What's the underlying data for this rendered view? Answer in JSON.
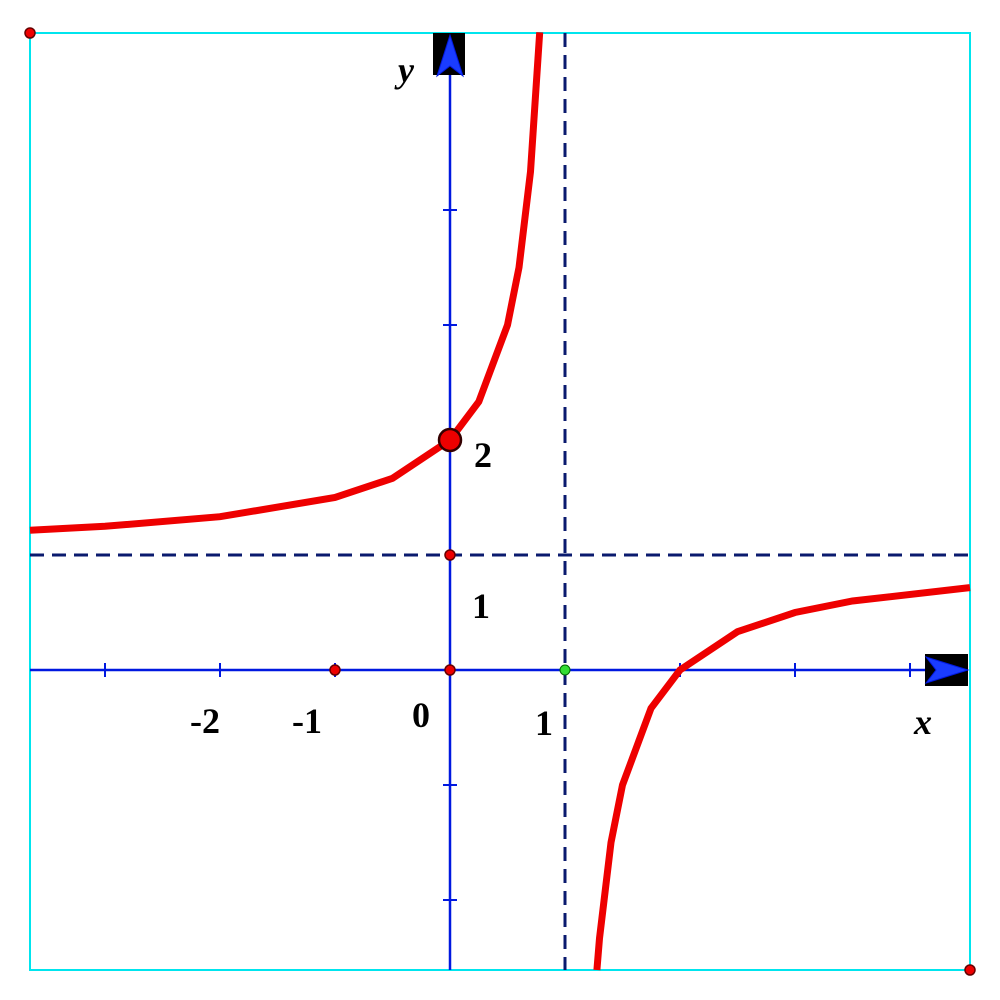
{
  "axes": {
    "x_label": "x",
    "y_label": "y"
  },
  "labels": {
    "x_ticks": [
      "-2",
      "-1",
      "0",
      "1"
    ],
    "y_ticks": [
      "2",
      "1"
    ]
  }
}
